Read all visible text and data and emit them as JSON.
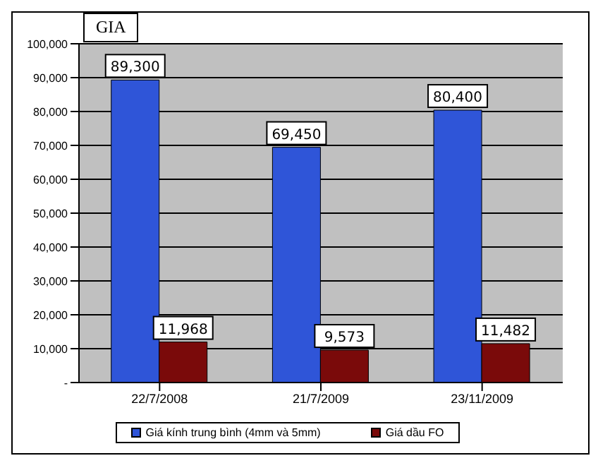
{
  "chart_data": {
    "type": "bar",
    "title": "GIA",
    "categories": [
      "22/7/2008",
      "21/7/2009",
      "23/11/2009"
    ],
    "series": [
      {
        "name": "Giá kính trung bình (4mm và 5mm)",
        "color": "#2f55d8",
        "values": [
          89300,
          69450,
          80400
        ],
        "value_labels": [
          "89,300",
          "69,450",
          "80,400"
        ]
      },
      {
        "name": "Giá dầu FO",
        "color": "#7a0a0a",
        "values": [
          11968,
          9573,
          11482
        ],
        "value_labels": [
          "11,968",
          "9,573",
          "11,482"
        ]
      }
    ],
    "ylim": [
      0,
      100000
    ],
    "yticks": [
      {
        "value": 0,
        "label": "-"
      },
      {
        "value": 10000,
        "label": "10,000"
      },
      {
        "value": 20000,
        "label": "20,000"
      },
      {
        "value": 30000,
        "label": "30,000"
      },
      {
        "value": 40000,
        "label": "40,000"
      },
      {
        "value": 50000,
        "label": "50,000"
      },
      {
        "value": 60000,
        "label": "60,000"
      },
      {
        "value": 70000,
        "label": "70,000"
      },
      {
        "value": 80000,
        "label": "80,000"
      },
      {
        "value": 90000,
        "label": "90,000"
      },
      {
        "value": 100000,
        "label": "100,000"
      }
    ],
    "grid": "y",
    "legend": "bottom"
  }
}
